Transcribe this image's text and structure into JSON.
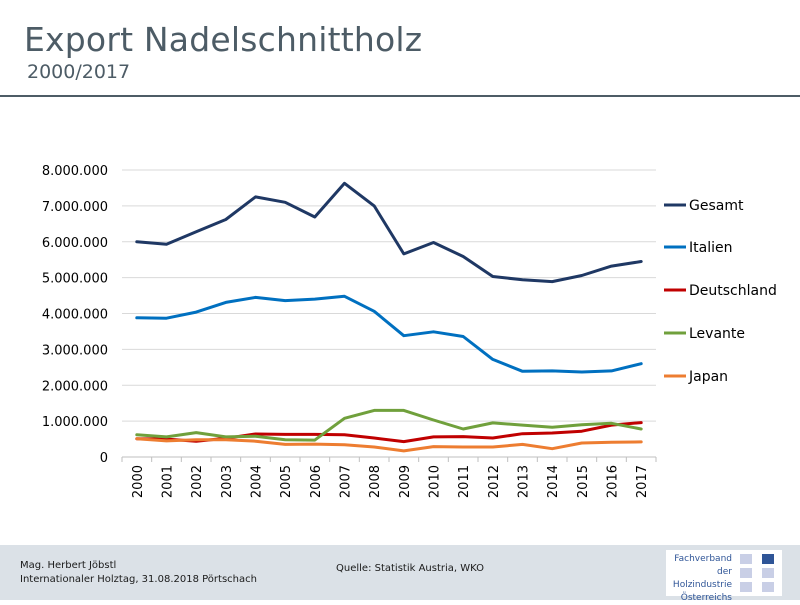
{
  "slide": {
    "title": "Export Nadelschnittholz",
    "subtitle": "2000/2017"
  },
  "footer": {
    "author_name": "Mag. Herbert Jöbstl",
    "author_event": "Internationaler Holztag, 31.08.2018 Pörtschach",
    "source": "Quelle: Statistik Austria, WKO",
    "logo_lines": [
      "Fachverband",
      "der Holzindustrie",
      "Österreichs"
    ]
  },
  "chart_data": {
    "type": "line",
    "title": "",
    "xlabel": "",
    "ylabel": "",
    "ylim": [
      0,
      8000000
    ],
    "yticks": [
      "0",
      "1.000.000",
      "2.000.000",
      "3.000.000",
      "4.000.000",
      "5.000.000",
      "6.000.000",
      "7.000.000",
      "8.000.000"
    ],
    "x": [
      "2000",
      "2001",
      "2002",
      "2003",
      "2004",
      "2005",
      "2006",
      "2007",
      "2008",
      "2009",
      "2010",
      "2011",
      "2012",
      "2013",
      "2014",
      "2015",
      "2016",
      "2017"
    ],
    "legend_position": "right",
    "grid": "horizontal",
    "series": [
      {
        "name": "Gesamt",
        "color": "#1f3864",
        "values": [
          6000000,
          5930000,
          6280000,
          6620000,
          7250000,
          7100000,
          6690000,
          7630000,
          7000000,
          5660000,
          5980000,
          5590000,
          5030000,
          4940000,
          4890000,
          5060000,
          5320000,
          5450000
        ]
      },
      {
        "name": "Italien",
        "color": "#0070c0",
        "values": [
          3880000,
          3870000,
          4040000,
          4310000,
          4450000,
          4360000,
          4400000,
          4480000,
          4060000,
          3380000,
          3490000,
          3360000,
          2720000,
          2390000,
          2400000,
          2370000,
          2400000,
          2600000
        ]
      },
      {
        "name": "Deutschland",
        "color": "#c00000",
        "values": [
          510000,
          500000,
          440000,
          520000,
          640000,
          630000,
          630000,
          620000,
          530000,
          430000,
          560000,
          570000,
          530000,
          650000,
          670000,
          720000,
          890000,
          960000
        ]
      },
      {
        "name": "Levante",
        "color": "#70a03c",
        "values": [
          620000,
          560000,
          680000,
          560000,
          580000,
          480000,
          470000,
          1080000,
          1300000,
          1300000,
          1030000,
          780000,
          950000,
          890000,
          830000,
          900000,
          940000,
          780000
        ]
      },
      {
        "name": "Japan",
        "color": "#ed7d31",
        "values": [
          510000,
          450000,
          480000,
          480000,
          440000,
          350000,
          360000,
          340000,
          280000,
          170000,
          290000,
          280000,
          280000,
          350000,
          230000,
          390000,
          410000,
          420000
        ]
      }
    ]
  }
}
